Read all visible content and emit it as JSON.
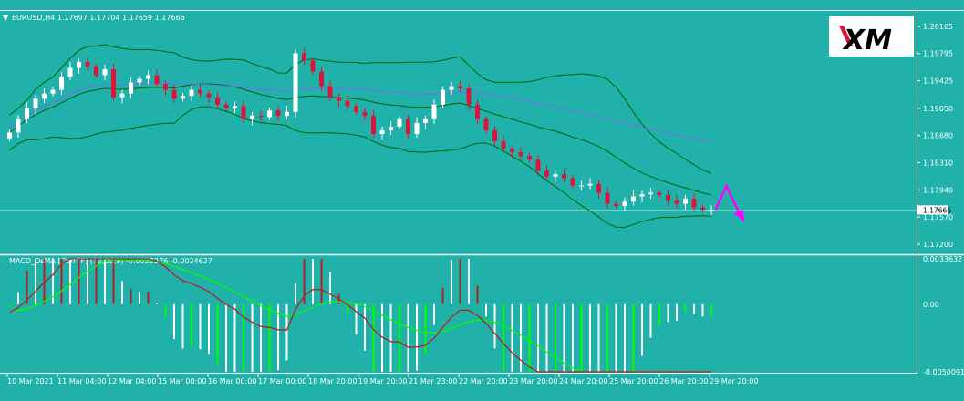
{
  "header": {
    "symbol_line": "EURUSD,H4  1.17697 1.17704 1.17659 1.17666"
  },
  "logo": {
    "text": "XM"
  },
  "price_axis": {
    "ticks": [
      "1.20165",
      "1.19795",
      "1.19425",
      "1.19050",
      "1.18680",
      "1.18310",
      "1.17940",
      "1.17570",
      "1.17200"
    ],
    "current_price": "1.17666"
  },
  "indicator": {
    "label": "MACD_OsMA [CurrTF] (12,26,9) -0.0022276 -0.0024627",
    "ticks": [
      "0.0033632",
      "0.00",
      "-0.0050091"
    ]
  },
  "time_axis": {
    "labels": [
      "10 Mar 2021",
      "11 Mar 04:00",
      "12 Mar 04:00",
      "15 Mar 00:00",
      "16 Mar 00:00",
      "17 Mar 00:00",
      "18 Mar 20:00",
      "19 Mar 20:00",
      "21 Mar 23:00",
      "22 Mar 20:00",
      "23 Mar 20:00",
      "24 Mar 20:00",
      "25 Mar 20:00",
      "26 Mar 20:00",
      "29 Mar 20:00"
    ]
  },
  "colors": {
    "background": "#20b2aa",
    "bull_candle": "#ffffff",
    "bear_candle": "#dc143c",
    "bands": "#006400",
    "ma": "#7b68ee",
    "arrow": "#ff00ff",
    "macd_main": "#b22222",
    "macd_signal": "#00ff00"
  },
  "chart_data": {
    "type": "candlestick",
    "x_labels": [
      "10 Mar 2021",
      "11 Mar 04:00",
      "12 Mar 04:00",
      "15 Mar 00:00",
      "16 Mar 00:00",
      "17 Mar 00:00",
      "18 Mar 20:00",
      "19 Mar 20:00",
      "21 Mar 23:00",
      "22 Mar 20:00",
      "23 Mar 20:00",
      "24 Mar 20:00",
      "25 Mar 20:00",
      "26 Mar 20:00",
      "29 Mar 20:00"
    ],
    "y_ticks": [
      1.20165,
      1.19795,
      1.19425,
      1.1905,
      1.1868,
      1.1831,
      1.1794,
      1.1757,
      1.172
    ],
    "ylim": [
      1.171,
      1.2035
    ],
    "current_price": 1.17666,
    "close": [
      1.1872,
      1.189,
      1.1905,
      1.1918,
      1.1925,
      1.193,
      1.1948,
      1.196,
      1.1968,
      1.1962,
      1.195,
      1.1958,
      1.192,
      1.1925,
      1.194,
      1.1945,
      1.195,
      1.1938,
      1.193,
      1.1918,
      1.1922,
      1.193,
      1.1925,
      1.192,
      1.191,
      1.1905,
      1.1908,
      1.189,
      1.1895,
      1.1893,
      1.1902,
      1.1895,
      1.19,
      1.198,
      1.197,
      1.1955,
      1.1935,
      1.192,
      1.1915,
      1.1908,
      1.19,
      1.1895,
      1.187,
      1.1875,
      1.188,
      1.189,
      1.187,
      1.1885,
      1.189,
      1.191,
      1.193,
      1.1935,
      1.1932,
      1.191,
      1.189,
      1.1875,
      1.186,
      1.185,
      1.1845,
      1.184,
      1.1835,
      1.182,
      1.1812,
      1.1815,
      1.181,
      1.18,
      1.18,
      1.1802,
      1.179,
      1.1775,
      1.1772,
      1.1778,
      1.1785,
      1.1788,
      1.179,
      1.1787,
      1.1779,
      1.1775,
      1.1782,
      1.177,
      1.1767,
      1.1767
    ],
    "series": [
      {
        "name": "MACD_OsMA",
        "type": "histogram"
      },
      {
        "name": "MACD",
        "type": "line"
      },
      {
        "name": "Signal",
        "type": "line"
      }
    ]
  }
}
